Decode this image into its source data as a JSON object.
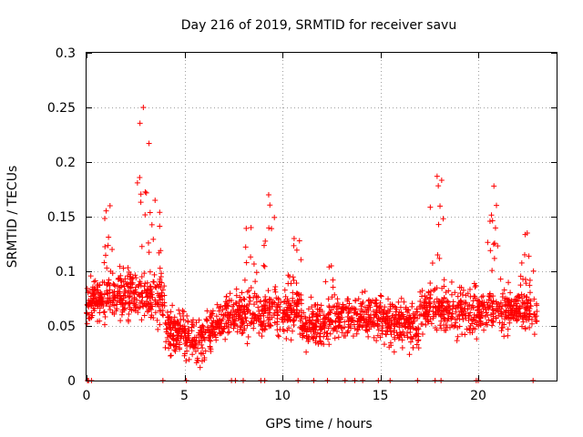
{
  "chart_data": {
    "type": "scatter",
    "title": "Day 216 of 2019, SRMTID for receiver savu",
    "xlabel": "GPS time / hours",
    "ylabel": "SRMTID / TECUs",
    "xlim": [
      0,
      24
    ],
    "ylim": [
      0,
      0.3
    ],
    "xticks": [
      0,
      5,
      10,
      15,
      20
    ],
    "yticks": [
      0,
      0.05,
      0.1,
      0.15,
      0.2,
      0.25,
      0.3
    ],
    "xtick_labels": [
      "0",
      "5",
      "10",
      "15",
      "20"
    ],
    "ytick_labels": [
      "0",
      "0.05",
      "0.1",
      "0.15",
      "0.2",
      "0.25",
      "0.3"
    ],
    "grid": true,
    "series": [
      {
        "name": "SRMTID",
        "marker": "plus",
        "color": "#ff0000",
        "time_range_hours": [
          0,
          23
        ],
        "baseline_points_hours": [
          0.05,
          0.1,
          0.25,
          3.9,
          5.1,
          7.4,
          7.6,
          8.0,
          8.9,
          9.1,
          10.8,
          11.6,
          12.3,
          13.2,
          13.7,
          14.1,
          14.9,
          15.5,
          16.9,
          17.8,
          18.1,
          19.9,
          20.0,
          22.8
        ],
        "features": [
          {
            "hour": 0.5,
            "value": 0.07
          },
          {
            "hour": 1.2,
            "value": 0.16
          },
          {
            "hour": 2.9,
            "value": 0.25
          },
          {
            "hour": 3.5,
            "value": 0.165
          },
          {
            "hour": 5.8,
            "value": 0.012
          },
          {
            "hour": 8.4,
            "value": 0.14
          },
          {
            "hour": 9.3,
            "value": 0.17
          },
          {
            "hour": 10.6,
            "value": 0.13
          },
          {
            "hour": 12.5,
            "value": 0.105
          },
          {
            "hour": 17.9,
            "value": 0.187
          },
          {
            "hour": 20.8,
            "value": 0.178
          },
          {
            "hour": 22.5,
            "value": 0.135
          }
        ]
      }
    ]
  }
}
